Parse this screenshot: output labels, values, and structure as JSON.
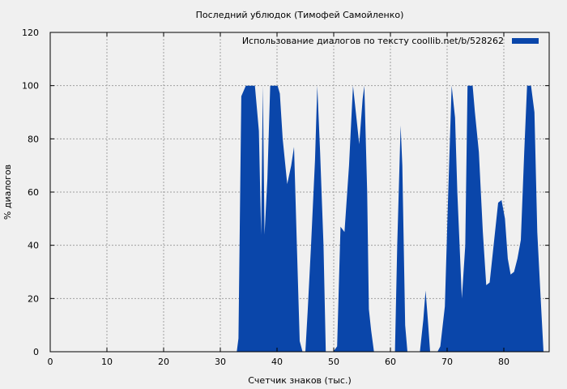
{
  "chart_data": {
    "type": "area",
    "title": "Последний ублюдок (Тимофей Самойленко)",
    "xlabel": "Счетчик знаков (тыс.)",
    "ylabel": "% диалогов",
    "xlim": [
      0,
      88
    ],
    "ylim": [
      0,
      120
    ],
    "xticks": [
      0,
      10,
      20,
      30,
      40,
      50,
      60,
      70,
      80
    ],
    "yticks": [
      0,
      20,
      40,
      60,
      80,
      100,
      120
    ],
    "grid": true,
    "legend_position": "top-right",
    "series": [
      {
        "name": "Использование диалогов по тексту  coollib.net/b/528262",
        "color": "#0a46aa",
        "x": [
          0,
          32.9,
          33.2,
          33.7,
          34.5,
          35.2,
          36.1,
          36.8,
          37.2,
          37.5,
          37.8,
          38.3,
          38.8,
          39.2,
          40.1,
          40.5,
          41.0,
          41.8,
          42.5,
          43.0,
          43.5,
          44.0,
          44.5,
          45.0,
          45.4,
          46.0,
          46.7,
          47.1,
          47.6,
          48.2,
          48.6,
          49.9,
          50.6,
          51.2,
          51.9,
          52.7,
          53.4,
          53.9,
          54.5,
          55.1,
          55.4,
          55.9,
          56.2,
          56.6,
          57.1,
          57.6,
          58.1,
          60.8,
          61.2,
          61.8,
          62.1,
          62.6,
          63.0,
          63.4,
          64.7,
          65.2,
          65.8,
          66.2,
          66.6,
          67.0,
          67.4,
          68.3,
          68.8,
          69.6,
          70.2,
          70.8,
          71.4,
          71.8,
          72.6,
          73.2,
          73.6,
          74.1,
          74.5,
          74.9,
          75.6,
          76.3,
          76.9,
          77.5,
          78.2,
          79.0,
          79.6,
          80.2,
          80.7,
          81.2,
          81.8,
          82.4,
          83.0,
          83.6,
          84.1,
          84.8,
          85.4,
          85.9,
          86.5,
          87.0,
          87.5,
          88.0
        ],
        "y": [
          0,
          0,
          5,
          96,
          100,
          100,
          100,
          83,
          44,
          100,
          44,
          65,
          100,
          100,
          100,
          97,
          80,
          63,
          70,
          77,
          40,
          4,
          0,
          0,
          15,
          40,
          72,
          100,
          75,
          40,
          0,
          0,
          2,
          47,
          45,
          70,
          100,
          90,
          78,
          95,
          100,
          60,
          16,
          8,
          0,
          0,
          0,
          0,
          40,
          85,
          70,
          10,
          0,
          0,
          0,
          0,
          12,
          23,
          12,
          0,
          0,
          0,
          2,
          17,
          60,
          100,
          88,
          60,
          20,
          40,
          100,
          100,
          100,
          90,
          75,
          45,
          25,
          26,
          40,
          56,
          57,
          50,
          35,
          29,
          30,
          35,
          42,
          75,
          100,
          100,
          90,
          45,
          20,
          0,
          0,
          0
        ]
      }
    ]
  }
}
